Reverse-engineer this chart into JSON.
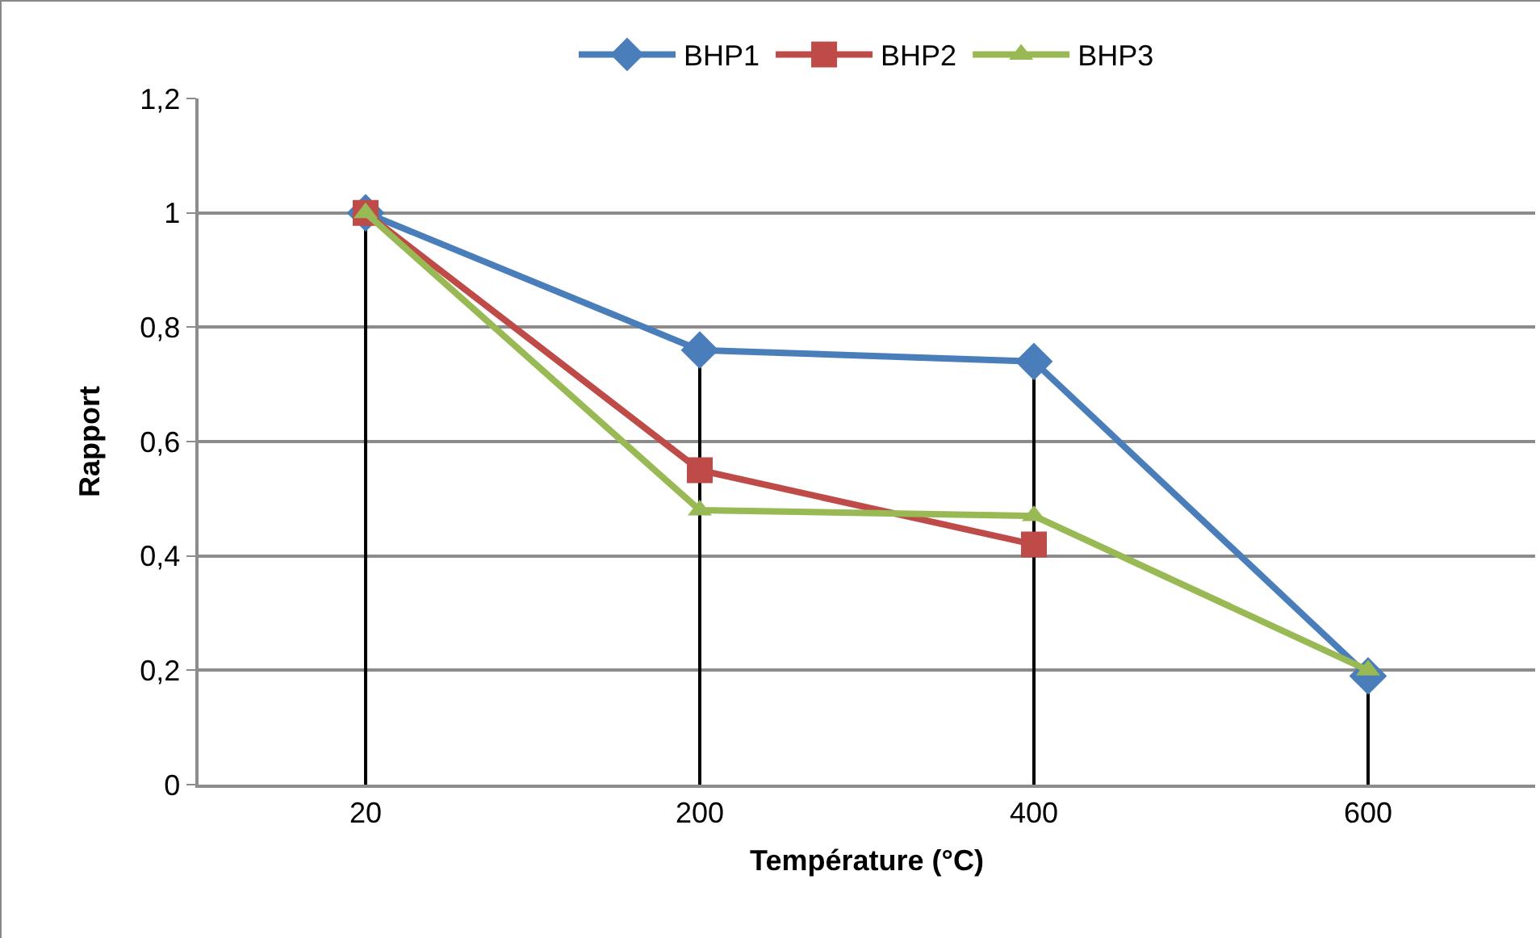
{
  "chart_data": {
    "type": "line",
    "xlabel": "Température (°C)",
    "ylabel": "Rapport",
    "categories": [
      "20",
      "200",
      "400",
      "600"
    ],
    "series": [
      {
        "name": "BHP1",
        "color": "#4a7ebb",
        "marker": "diamond",
        "values": [
          1,
          0.76,
          0.74,
          0.19
        ],
        "errors": [
          [
            0,
            1
          ],
          [
            0,
            0.76
          ],
          [
            0,
            0.74
          ],
          [
            0,
            0.19
          ]
        ]
      },
      {
        "name": "BHP2",
        "color": "#be4b48",
        "marker": "square",
        "values": [
          1,
          0.55,
          0.42,
          null
        ]
      },
      {
        "name": "BHP3",
        "color": "#98b954",
        "marker": "triangle",
        "values": [
          1,
          0.48,
          0.47,
          0.2
        ]
      }
    ],
    "ylim": [
      0,
      1.2
    ],
    "yticks": [
      {
        "value": 0,
        "label": "0"
      },
      {
        "value": 0.2,
        "label": "0,2"
      },
      {
        "value": 0.4,
        "label": "0,4"
      },
      {
        "value": 0.6,
        "label": "0,6"
      },
      {
        "value": 0.8,
        "label": "0,8"
      },
      {
        "value": 1,
        "label": "1"
      },
      {
        "value": 1.2,
        "label": "1,2"
      }
    ],
    "grid": "y",
    "legend": "top"
  }
}
